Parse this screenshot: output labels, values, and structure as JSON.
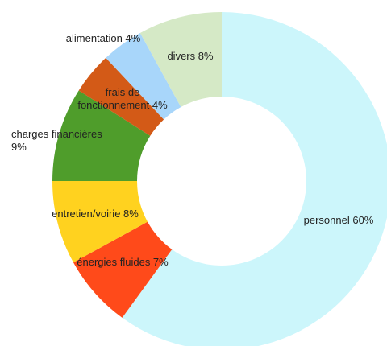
{
  "chart_data": {
    "type": "pie",
    "variant": "donut",
    "title": "",
    "legend": "none",
    "slices": [
      {
        "label": "personnel",
        "value": 60,
        "display": "personnel 60%",
        "color": "#ccf6fb"
      },
      {
        "label": "énergies fluides",
        "value": 7,
        "display": "énergies fluides 7%",
        "color": "#ff4a1a"
      },
      {
        "label": "entretien/voirie",
        "value": 8,
        "display": "entretien/voirie 8%",
        "color": "#ffd21f"
      },
      {
        "label": "charges financières",
        "value": 9,
        "display": [
          "charges financières",
          "9%"
        ],
        "color": "#4f9d2b"
      },
      {
        "label": "frais de fonctionnement",
        "value": 4,
        "display": [
          "frais de",
          "fonctionnement 4%"
        ],
        "color": "#d35a17"
      },
      {
        "label": "alimentation",
        "value": 4,
        "display": "alimentation 4%",
        "color": "#a8d6fa"
      },
      {
        "label": "divers",
        "value": 8,
        "display": "divers 8%",
        "color": "#d5e9c6"
      }
    ]
  }
}
